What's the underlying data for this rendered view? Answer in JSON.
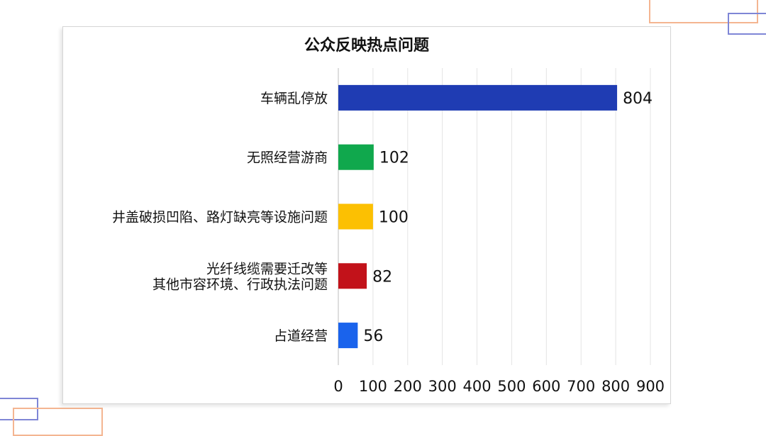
{
  "chart_data": {
    "type": "bar",
    "orientation": "horizontal",
    "title": "公众反映热点问题",
    "categories": [
      [
        "车辆乱停放"
      ],
      [
        "无照经营游商"
      ],
      [
        "井盖破损凹陷、路灯缺亮等设施问题"
      ],
      [
        "光纤线缆需要迁改等",
        "其他市容环境、行政执法问题"
      ],
      [
        "占道经营"
      ]
    ],
    "values": [
      804,
      102,
      100,
      82,
      56
    ],
    "data_labels": [
      "804",
      "102",
      "100",
      "82",
      "56"
    ],
    "bar_colors": [
      "#1f3cb3",
      "#10a84d",
      "#fcc002",
      "#c2121a",
      "#1a63ec"
    ],
    "xlim": [
      0,
      900
    ],
    "x_ticks": [
      "0",
      "100",
      "200",
      "300",
      "400",
      "500",
      "600",
      "700",
      "800",
      "900"
    ],
    "grid": true,
    "legend": "none"
  }
}
